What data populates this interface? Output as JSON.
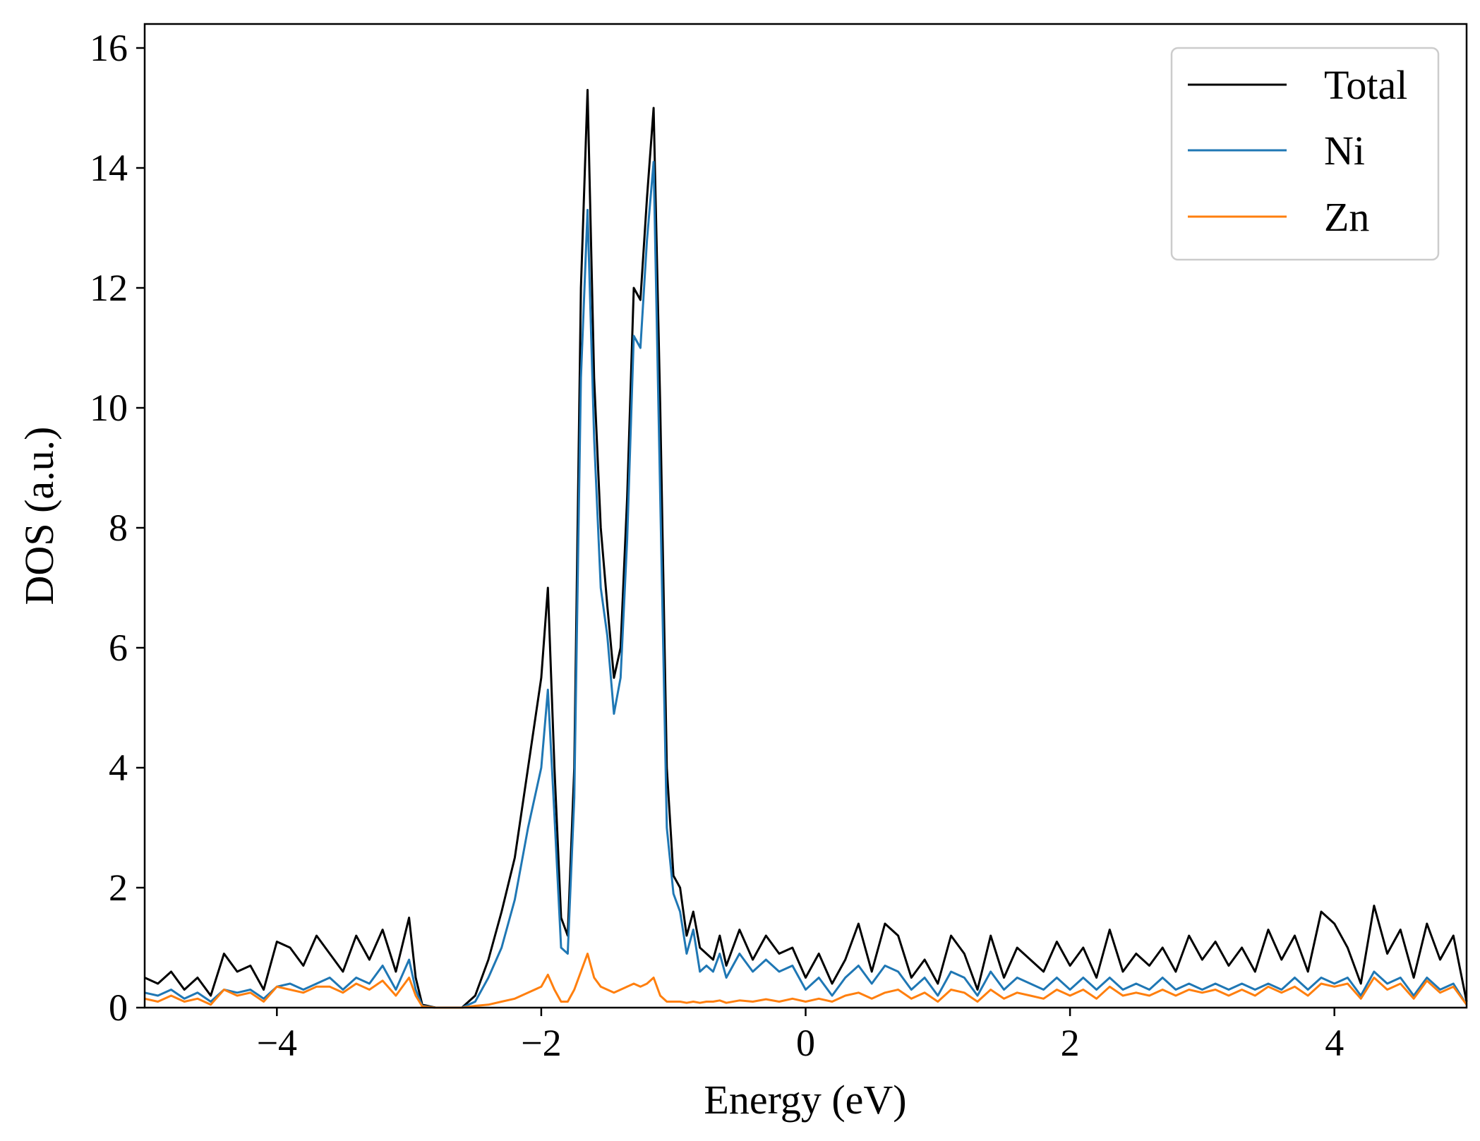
{
  "chart_data": {
    "type": "line",
    "title": "",
    "xlabel": "Energy (eV)",
    "ylabel": "DOS (a.u.)",
    "xlim": [
      -5,
      5
    ],
    "ylim": [
      0,
      16.4
    ],
    "xticks": [
      -4,
      -2,
      0,
      2,
      4
    ],
    "xtick_labels": [
      "−4",
      "−2",
      "0",
      "2",
      "4"
    ],
    "yticks": [
      0,
      2,
      4,
      6,
      8,
      10,
      12,
      14,
      16
    ],
    "ytick_labels": [
      "0",
      "2",
      "4",
      "6",
      "8",
      "10",
      "12",
      "14",
      "16"
    ],
    "grid": false,
    "legend_position": "top-right",
    "series": [
      {
        "name": "Total",
        "color": "#000000",
        "x": [
          -5.0,
          -4.9,
          -4.8,
          -4.7,
          -4.6,
          -4.5,
          -4.4,
          -4.3,
          -4.2,
          -4.1,
          -4.0,
          -3.9,
          -3.8,
          -3.7,
          -3.6,
          -3.5,
          -3.4,
          -3.3,
          -3.2,
          -3.1,
          -3.0,
          -2.95,
          -2.9,
          -2.8,
          -2.6,
          -2.5,
          -2.4,
          -2.3,
          -2.2,
          -2.1,
          -2.0,
          -1.95,
          -1.9,
          -1.85,
          -1.8,
          -1.75,
          -1.7,
          -1.65,
          -1.6,
          -1.55,
          -1.5,
          -1.45,
          -1.4,
          -1.35,
          -1.3,
          -1.25,
          -1.2,
          -1.15,
          -1.1,
          -1.05,
          -1.0,
          -0.95,
          -0.9,
          -0.85,
          -0.8,
          -0.75,
          -0.7,
          -0.65,
          -0.6,
          -0.5,
          -0.4,
          -0.3,
          -0.2,
          -0.1,
          0.0,
          0.1,
          0.2,
          0.3,
          0.4,
          0.5,
          0.6,
          0.7,
          0.8,
          0.9,
          1.0,
          1.1,
          1.2,
          1.3,
          1.4,
          1.5,
          1.6,
          1.7,
          1.8,
          1.9,
          2.0,
          2.1,
          2.2,
          2.3,
          2.4,
          2.5,
          2.6,
          2.7,
          2.8,
          2.9,
          3.0,
          3.1,
          3.2,
          3.3,
          3.4,
          3.5,
          3.6,
          3.7,
          3.8,
          3.9,
          4.0,
          4.1,
          4.2,
          4.3,
          4.4,
          4.5,
          4.6,
          4.7,
          4.8,
          4.9,
          5.0
        ],
        "y": [
          0.5,
          0.4,
          0.6,
          0.3,
          0.5,
          0.2,
          0.9,
          0.6,
          0.7,
          0.3,
          1.1,
          1.0,
          0.7,
          1.2,
          0.9,
          0.6,
          1.2,
          0.8,
          1.3,
          0.6,
          1.5,
          0.5,
          0.05,
          0.0,
          0.0,
          0.2,
          0.8,
          1.6,
          2.5,
          4.0,
          5.5,
          7.0,
          4.0,
          1.5,
          1.2,
          4.0,
          12.0,
          15.3,
          10.5,
          8.0,
          6.7,
          5.5,
          6.0,
          8.5,
          12.0,
          11.8,
          13.5,
          15.0,
          10.0,
          4.0,
          2.2,
          2.0,
          1.2,
          1.6,
          1.0,
          0.9,
          0.8,
          1.2,
          0.7,
          1.3,
          0.8,
          1.2,
          0.9,
          1.0,
          0.5,
          0.9,
          0.4,
          0.8,
          1.4,
          0.6,
          1.4,
          1.2,
          0.5,
          0.8,
          0.4,
          1.2,
          0.9,
          0.3,
          1.2,
          0.5,
          1.0,
          0.8,
          0.6,
          1.1,
          0.7,
          1.0,
          0.5,
          1.3,
          0.6,
          0.9,
          0.7,
          1.0,
          0.6,
          1.2,
          0.8,
          1.1,
          0.7,
          1.0,
          0.6,
          1.3,
          0.8,
          1.2,
          0.6,
          1.6,
          1.4,
          1.0,
          0.4,
          1.7,
          0.9,
          1.3,
          0.5,
          1.4,
          0.8,
          1.2,
          0.1
        ]
      },
      {
        "name": "Ni",
        "color": "#1f77b4",
        "x": [
          -5.0,
          -4.9,
          -4.8,
          -4.7,
          -4.6,
          -4.5,
          -4.4,
          -4.3,
          -4.2,
          -4.1,
          -4.0,
          -3.9,
          -3.8,
          -3.7,
          -3.6,
          -3.5,
          -3.4,
          -3.3,
          -3.2,
          -3.1,
          -3.0,
          -2.95,
          -2.9,
          -2.8,
          -2.6,
          -2.5,
          -2.4,
          -2.3,
          -2.2,
          -2.1,
          -2.0,
          -1.95,
          -1.9,
          -1.85,
          -1.8,
          -1.75,
          -1.7,
          -1.65,
          -1.6,
          -1.55,
          -1.5,
          -1.45,
          -1.4,
          -1.35,
          -1.3,
          -1.25,
          -1.2,
          -1.15,
          -1.1,
          -1.05,
          -1.0,
          -0.95,
          -0.9,
          -0.85,
          -0.8,
          -0.75,
          -0.7,
          -0.65,
          -0.6,
          -0.5,
          -0.4,
          -0.3,
          -0.2,
          -0.1,
          0.0,
          0.1,
          0.2,
          0.3,
          0.4,
          0.5,
          0.6,
          0.7,
          0.8,
          0.9,
          1.0,
          1.1,
          1.2,
          1.3,
          1.4,
          1.5,
          1.6,
          1.7,
          1.8,
          1.9,
          2.0,
          2.1,
          2.2,
          2.3,
          2.4,
          2.5,
          2.6,
          2.7,
          2.8,
          2.9,
          3.0,
          3.1,
          3.2,
          3.3,
          3.4,
          3.5,
          3.6,
          3.7,
          3.8,
          3.9,
          4.0,
          4.1,
          4.2,
          4.3,
          4.4,
          4.5,
          4.6,
          4.7,
          4.8,
          4.9,
          5.0
        ],
        "y": [
          0.25,
          0.2,
          0.3,
          0.15,
          0.25,
          0.1,
          0.3,
          0.25,
          0.3,
          0.15,
          0.35,
          0.4,
          0.3,
          0.4,
          0.5,
          0.3,
          0.5,
          0.4,
          0.7,
          0.3,
          0.8,
          0.3,
          0.03,
          0.0,
          0.0,
          0.1,
          0.5,
          1.0,
          1.8,
          3.0,
          4.0,
          5.3,
          3.2,
          1.0,
          0.9,
          3.5,
          10.5,
          13.3,
          9.5,
          7.0,
          6.2,
          4.9,
          5.5,
          7.8,
          11.2,
          11.0,
          12.8,
          14.1,
          8.5,
          3.0,
          1.9,
          1.6,
          0.9,
          1.3,
          0.6,
          0.7,
          0.6,
          0.9,
          0.5,
          0.9,
          0.6,
          0.8,
          0.6,
          0.7,
          0.3,
          0.5,
          0.2,
          0.5,
          0.7,
          0.4,
          0.7,
          0.6,
          0.3,
          0.5,
          0.2,
          0.6,
          0.5,
          0.2,
          0.6,
          0.3,
          0.5,
          0.4,
          0.3,
          0.5,
          0.3,
          0.5,
          0.3,
          0.5,
          0.3,
          0.4,
          0.3,
          0.5,
          0.3,
          0.4,
          0.3,
          0.4,
          0.3,
          0.4,
          0.3,
          0.4,
          0.3,
          0.5,
          0.3,
          0.5,
          0.4,
          0.5,
          0.2,
          0.6,
          0.4,
          0.5,
          0.2,
          0.5,
          0.3,
          0.4,
          0.05
        ]
      },
      {
        "name": "Zn",
        "color": "#ff7f0e",
        "x": [
          -5.0,
          -4.9,
          -4.8,
          -4.7,
          -4.6,
          -4.5,
          -4.4,
          -4.3,
          -4.2,
          -4.1,
          -4.0,
          -3.9,
          -3.8,
          -3.7,
          -3.6,
          -3.5,
          -3.4,
          -3.3,
          -3.2,
          -3.1,
          -3.0,
          -2.95,
          -2.9,
          -2.8,
          -2.6,
          -2.5,
          -2.4,
          -2.3,
          -2.2,
          -2.1,
          -2.0,
          -1.95,
          -1.9,
          -1.85,
          -1.8,
          -1.75,
          -1.7,
          -1.65,
          -1.6,
          -1.55,
          -1.5,
          -1.45,
          -1.4,
          -1.35,
          -1.3,
          -1.25,
          -1.2,
          -1.15,
          -1.1,
          -1.05,
          -1.0,
          -0.95,
          -0.9,
          -0.85,
          -0.8,
          -0.75,
          -0.7,
          -0.65,
          -0.6,
          -0.5,
          -0.4,
          -0.3,
          -0.2,
          -0.1,
          0.0,
          0.1,
          0.2,
          0.3,
          0.4,
          0.5,
          0.6,
          0.7,
          0.8,
          0.9,
          1.0,
          1.1,
          1.2,
          1.3,
          1.4,
          1.5,
          1.6,
          1.7,
          1.8,
          1.9,
          2.0,
          2.1,
          2.2,
          2.3,
          2.4,
          2.5,
          2.6,
          2.7,
          2.8,
          2.9,
          3.0,
          3.1,
          3.2,
          3.3,
          3.4,
          3.5,
          3.6,
          3.7,
          3.8,
          3.9,
          4.0,
          4.1,
          4.2,
          4.3,
          4.4,
          4.5,
          4.6,
          4.7,
          4.8,
          4.9,
          5.0
        ],
        "y": [
          0.15,
          0.1,
          0.2,
          0.1,
          0.15,
          0.05,
          0.3,
          0.2,
          0.25,
          0.1,
          0.35,
          0.3,
          0.25,
          0.35,
          0.35,
          0.25,
          0.4,
          0.3,
          0.45,
          0.2,
          0.5,
          0.2,
          0.02,
          0.0,
          0.0,
          0.03,
          0.05,
          0.1,
          0.15,
          0.25,
          0.35,
          0.55,
          0.3,
          0.1,
          0.1,
          0.3,
          0.6,
          0.9,
          0.5,
          0.35,
          0.3,
          0.25,
          0.3,
          0.35,
          0.4,
          0.35,
          0.4,
          0.5,
          0.2,
          0.1,
          0.1,
          0.1,
          0.08,
          0.1,
          0.08,
          0.1,
          0.1,
          0.12,
          0.08,
          0.12,
          0.1,
          0.14,
          0.1,
          0.15,
          0.1,
          0.15,
          0.1,
          0.2,
          0.25,
          0.15,
          0.25,
          0.3,
          0.15,
          0.25,
          0.1,
          0.3,
          0.25,
          0.1,
          0.3,
          0.15,
          0.25,
          0.2,
          0.15,
          0.3,
          0.2,
          0.3,
          0.15,
          0.35,
          0.2,
          0.25,
          0.2,
          0.3,
          0.2,
          0.3,
          0.25,
          0.3,
          0.2,
          0.3,
          0.2,
          0.35,
          0.25,
          0.35,
          0.2,
          0.4,
          0.35,
          0.4,
          0.15,
          0.5,
          0.3,
          0.4,
          0.15,
          0.45,
          0.25,
          0.35,
          0.05
        ]
      }
    ]
  }
}
